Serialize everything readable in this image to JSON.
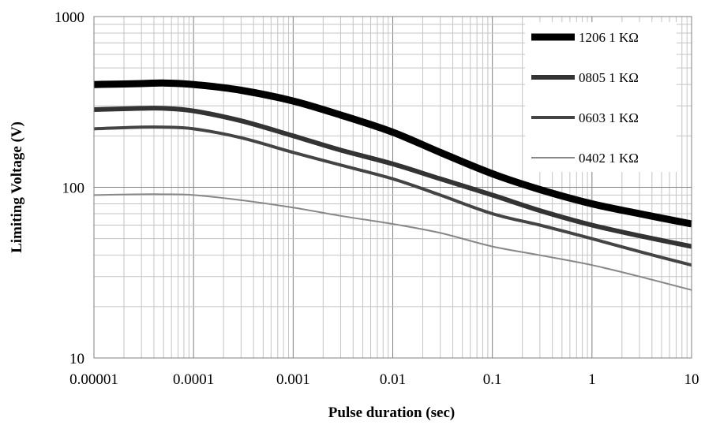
{
  "chart_data": {
    "type": "line",
    "x_scale": "log",
    "y_scale": "log",
    "xlabel": "Pulse duration (sec)",
    "ylabel": "Limiting Voltage (V)",
    "xlim": [
      1e-05,
      10
    ],
    "ylim": [
      10,
      1000
    ],
    "grid": true,
    "legend_position": "top-right",
    "x_tick_labels": [
      "0.00001",
      "0.0001",
      "0.001",
      "0.01",
      "0.1",
      "1",
      "10"
    ],
    "y_tick_labels": [
      "10",
      "100",
      "1000"
    ],
    "series": [
      {
        "name": "1206 1 KΩ",
        "color": "#000000",
        "x": [
          1e-05,
          3e-05,
          5e-05,
          0.0001,
          0.0003,
          0.001,
          0.003,
          0.01,
          0.03,
          0.1,
          0.3,
          1,
          3,
          10
        ],
        "y": [
          400,
          405,
          408,
          400,
          370,
          320,
          265,
          210,
          160,
          120,
          97,
          80,
          70,
          61
        ]
      },
      {
        "name": "0805 1 KΩ",
        "color": "#333333",
        "x": [
          1e-05,
          3e-05,
          5e-05,
          0.0001,
          0.0003,
          0.001,
          0.003,
          0.01,
          0.03,
          0.1,
          0.3,
          1,
          3,
          10
        ],
        "y": [
          285,
          290,
          290,
          280,
          245,
          200,
          165,
          137,
          112,
          90,
          73,
          60,
          52,
          45
        ]
      },
      {
        "name": "0603 1 KΩ",
        "color": "#444444",
        "x": [
          1e-05,
          3e-05,
          5e-05,
          0.0001,
          0.0003,
          0.001,
          0.003,
          0.01,
          0.03,
          0.1,
          0.3,
          1,
          3,
          10
        ],
        "y": [
          220,
          225,
          225,
          220,
          195,
          160,
          135,
          112,
          90,
          70,
          60,
          50,
          42,
          35
        ]
      },
      {
        "name": "0402 1 KΩ",
        "color": "#888888",
        "x": [
          1e-05,
          3e-05,
          5e-05,
          0.0001,
          0.0003,
          0.001,
          0.003,
          0.01,
          0.03,
          0.1,
          0.3,
          1,
          3,
          10
        ],
        "y": [
          90,
          91,
          91,
          90,
          84,
          76,
          68,
          61,
          54,
          45,
          40,
          35,
          30,
          25
        ]
      }
    ]
  }
}
